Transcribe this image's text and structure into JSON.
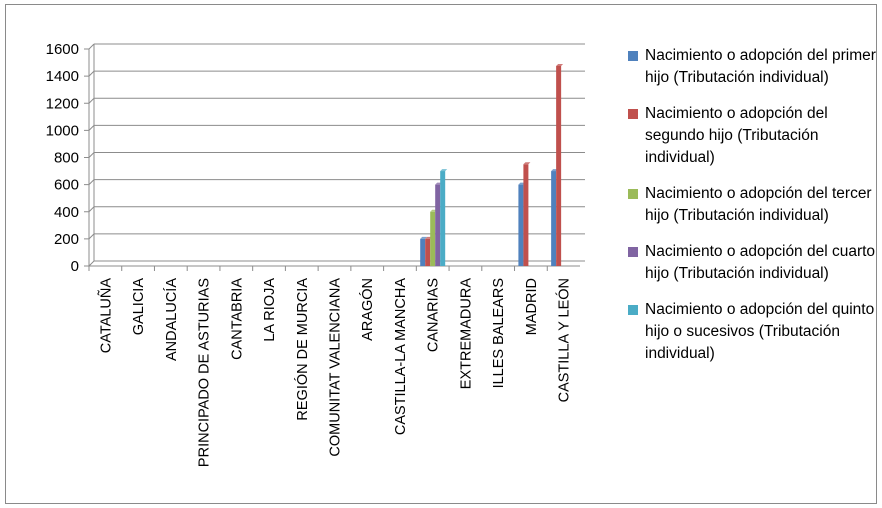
{
  "chart_data": {
    "type": "bar",
    "categories": [
      "CATALUÑA",
      "GALICIA",
      "ANDALUCÍA",
      "PRINCIPADO DE ASTURIAS",
      "CANTABRIA",
      "LA RIOJA",
      "REGIÓN DE MURCIA",
      "COMUNITAT VALENCIANA",
      "ARAGÓN",
      "CASTILLA-LA MANCHA",
      "CANARIAS",
      "EXTREMADURA",
      "ILLES BALEARS",
      "MADRID",
      "CASTILLA Y LEÓN"
    ],
    "series": [
      {
        "name": "Nacimiento o adopción del primer hijo (Tributación individual)",
        "color": "#4f81bd",
        "values": [
          0,
          0,
          0,
          0,
          0,
          0,
          0,
          0,
          0,
          0,
          200,
          0,
          0,
          600,
          700
        ]
      },
      {
        "name": "Nacimiento o adopción del segundo hijo (Tributación individual)",
        "color": "#c0504d",
        "values": [
          0,
          0,
          0,
          0,
          0,
          0,
          0,
          0,
          0,
          0,
          200,
          0,
          0,
          750,
          1475
        ]
      },
      {
        "name": "Nacimiento o adopción del tercer hijo (Tributación individual)",
        "color": "#9bbb59",
        "values": [
          0,
          0,
          0,
          0,
          0,
          0,
          0,
          0,
          0,
          0,
          400,
          0,
          0,
          0,
          0
        ]
      },
      {
        "name": "Nacimiento o adopción del cuarto hijo (Tributación individual)",
        "color": "#8064a2",
        "values": [
          0,
          0,
          0,
          0,
          0,
          0,
          0,
          0,
          0,
          0,
          600,
          0,
          0,
          0,
          0
        ]
      },
      {
        "name": "Nacimiento o adopción del quinto hijo o sucesivos (Tributación individual)",
        "color": "#4bacc6",
        "values": [
          0,
          0,
          0,
          0,
          0,
          0,
          0,
          0,
          0,
          0,
          700,
          0,
          0,
          0,
          0
        ]
      }
    ],
    "y_ticks": [
      "0",
      "200",
      "400",
      "600",
      "800",
      "1000",
      "1200",
      "1400",
      "1600"
    ],
    "ylim": [
      0,
      1600
    ],
    "grid": true,
    "legend_position": "right"
  }
}
